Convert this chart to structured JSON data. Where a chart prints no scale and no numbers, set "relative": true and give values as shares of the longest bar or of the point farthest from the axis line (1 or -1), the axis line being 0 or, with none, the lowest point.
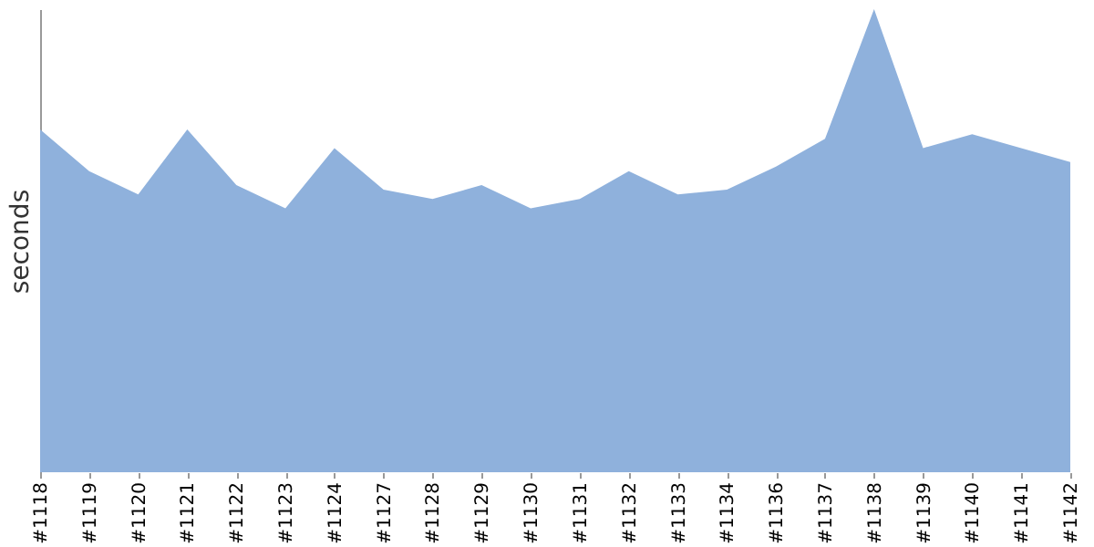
{
  "chart_data": {
    "type": "area",
    "ylabel": "seconds",
    "relative": true,
    "legend": false,
    "categories": [
      "#1118",
      "#1119",
      "#1120",
      "#1121",
      "#1122",
      "#1123",
      "#1124",
      "#1127",
      "#1128",
      "#1129",
      "#1130",
      "#1131",
      "#1132",
      "#1133",
      "#1134",
      "#1136",
      "#1137",
      "#1138",
      "#1139",
      "#1140",
      "#1141",
      "#1142"
    ],
    "series": [
      {
        "color": "#8fb1dc",
        "values": [
          0.74,
          0.65,
          0.6,
          0.74,
          0.62,
          0.57,
          0.7,
          0.61,
          0.59,
          0.62,
          0.57,
          0.59,
          0.65,
          0.6,
          0.61,
          0.66,
          0.72,
          1,
          0.7,
          0.73,
          0.7,
          0.67
        ]
      }
    ]
  }
}
